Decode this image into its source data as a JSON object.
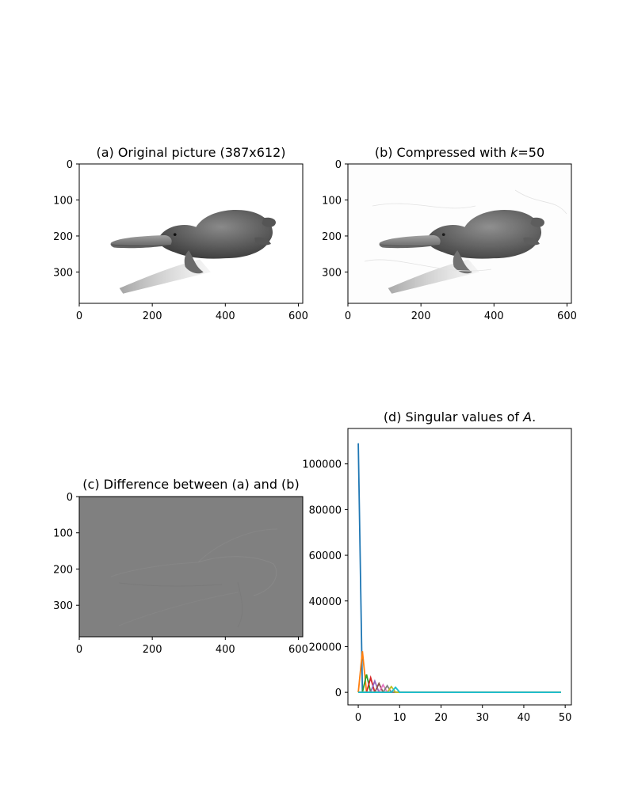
{
  "chart_data": [
    {
      "type": "image",
      "title": "(a) Original picture (387x612)",
      "xticks": [
        0,
        200,
        400,
        600
      ],
      "yticks": [
        0,
        100,
        200,
        300
      ],
      "xlim": [
        0,
        612
      ],
      "ylim": [
        387,
        0
      ],
      "colormap": "grayscale"
    },
    {
      "type": "image",
      "title": "(b) Compressed with k=50",
      "xticks": [
        0,
        200,
        400,
        600
      ],
      "yticks": [
        0,
        100,
        200,
        300
      ],
      "xlim": [
        0,
        612
      ],
      "ylim": [
        387,
        0
      ],
      "colormap": "grayscale"
    },
    {
      "type": "image",
      "title": "(c) Difference between (a) and (b)",
      "xticks": [
        0,
        200,
        400,
        600
      ],
      "yticks": [
        0,
        100,
        200,
        300
      ],
      "xlim": [
        0,
        612
      ],
      "ylim": [
        387,
        0
      ],
      "colormap": "grayscale"
    },
    {
      "type": "line",
      "title": "(d) Singular values of A.",
      "xticks": [
        0,
        10,
        20,
        30,
        40,
        50
      ],
      "yticks": [
        0,
        20000,
        40000,
        60000,
        80000,
        100000
      ],
      "xlim": [
        -2.5,
        51.5
      ],
      "ylim": [
        -5500,
        115500
      ],
      "series_count": 10,
      "colors": [
        "#1f77b4",
        "#ff7f0e",
        "#2ca02c",
        "#d62728",
        "#9467bd",
        "#8c564b",
        "#e377c2",
        "#7f7f7f",
        "#bcbd22",
        "#17becf"
      ],
      "peaks": [
        {
          "index": 0,
          "value": 109000
        },
        {
          "index": 1,
          "value": 18000
        },
        {
          "index": 2,
          "value": 7800
        },
        {
          "index": 3,
          "value": 6400
        },
        {
          "index": 4,
          "value": 4900
        },
        {
          "index": 5,
          "value": 3900
        },
        {
          "index": 6,
          "value": 3300
        },
        {
          "index": 7,
          "value": 2900
        },
        {
          "index": 8,
          "value": 2500
        },
        {
          "index": 9,
          "value": 2200
        }
      ]
    }
  ]
}
